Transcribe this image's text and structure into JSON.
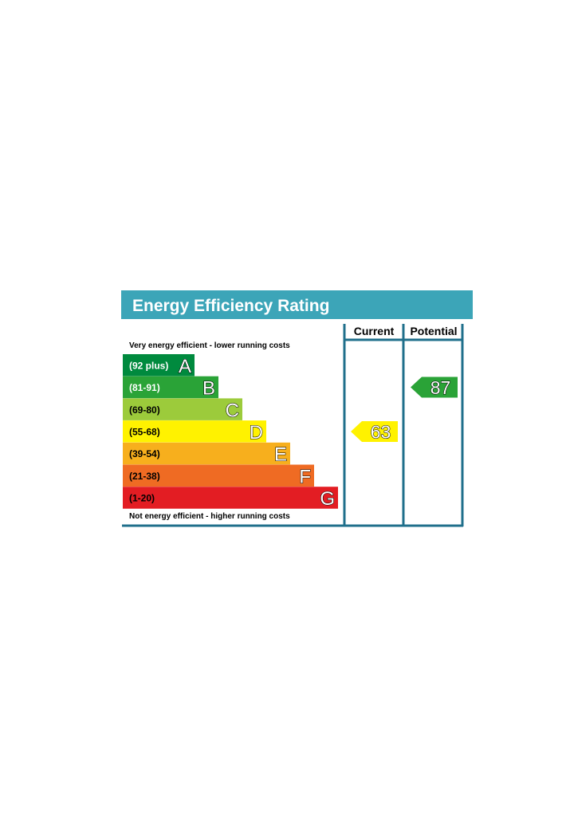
{
  "chart_data": {
    "type": "bar",
    "title": "Energy Efficiency Rating",
    "columns": [
      "Current",
      "Potential"
    ],
    "top_note": "Very energy efficient - lower running costs",
    "bottom_note": "Not energy efficient - higher running costs",
    "bands": [
      {
        "letter": "A",
        "range": "(92 plus)",
        "min": 92,
        "max": 100,
        "color": "#008a3e",
        "label_color": "#ffffff"
      },
      {
        "letter": "B",
        "range": "(81-91)",
        "min": 81,
        "max": 91,
        "color": "#2aa337",
        "label_color": "#ffffff"
      },
      {
        "letter": "C",
        "range": "(69-80)",
        "min": 69,
        "max": 80,
        "color": "#9ccb3b",
        "label_color": "#000000"
      },
      {
        "letter": "D",
        "range": "(55-68)",
        "min": 55,
        "max": 68,
        "color": "#fff200",
        "label_color": "#000000"
      },
      {
        "letter": "E",
        "range": "(39-54)",
        "min": 39,
        "max": 54,
        "color": "#f7af1d",
        "label_color": "#000000"
      },
      {
        "letter": "F",
        "range": "(21-38)",
        "min": 21,
        "max": 38,
        "color": "#ef6b23",
        "label_color": "#000000"
      },
      {
        "letter": "G",
        "range": "(1-20)",
        "min": 1,
        "max": 20,
        "color": "#e31d23",
        "label_color": "#000000"
      }
    ],
    "current": {
      "value": 63,
      "band": "D",
      "color": "#fff200"
    },
    "potential": {
      "value": 87,
      "band": "B",
      "color": "#2aa337"
    }
  },
  "colors": {
    "header_bg": "#3ca5b8",
    "frame": "#1f6f8b"
  }
}
